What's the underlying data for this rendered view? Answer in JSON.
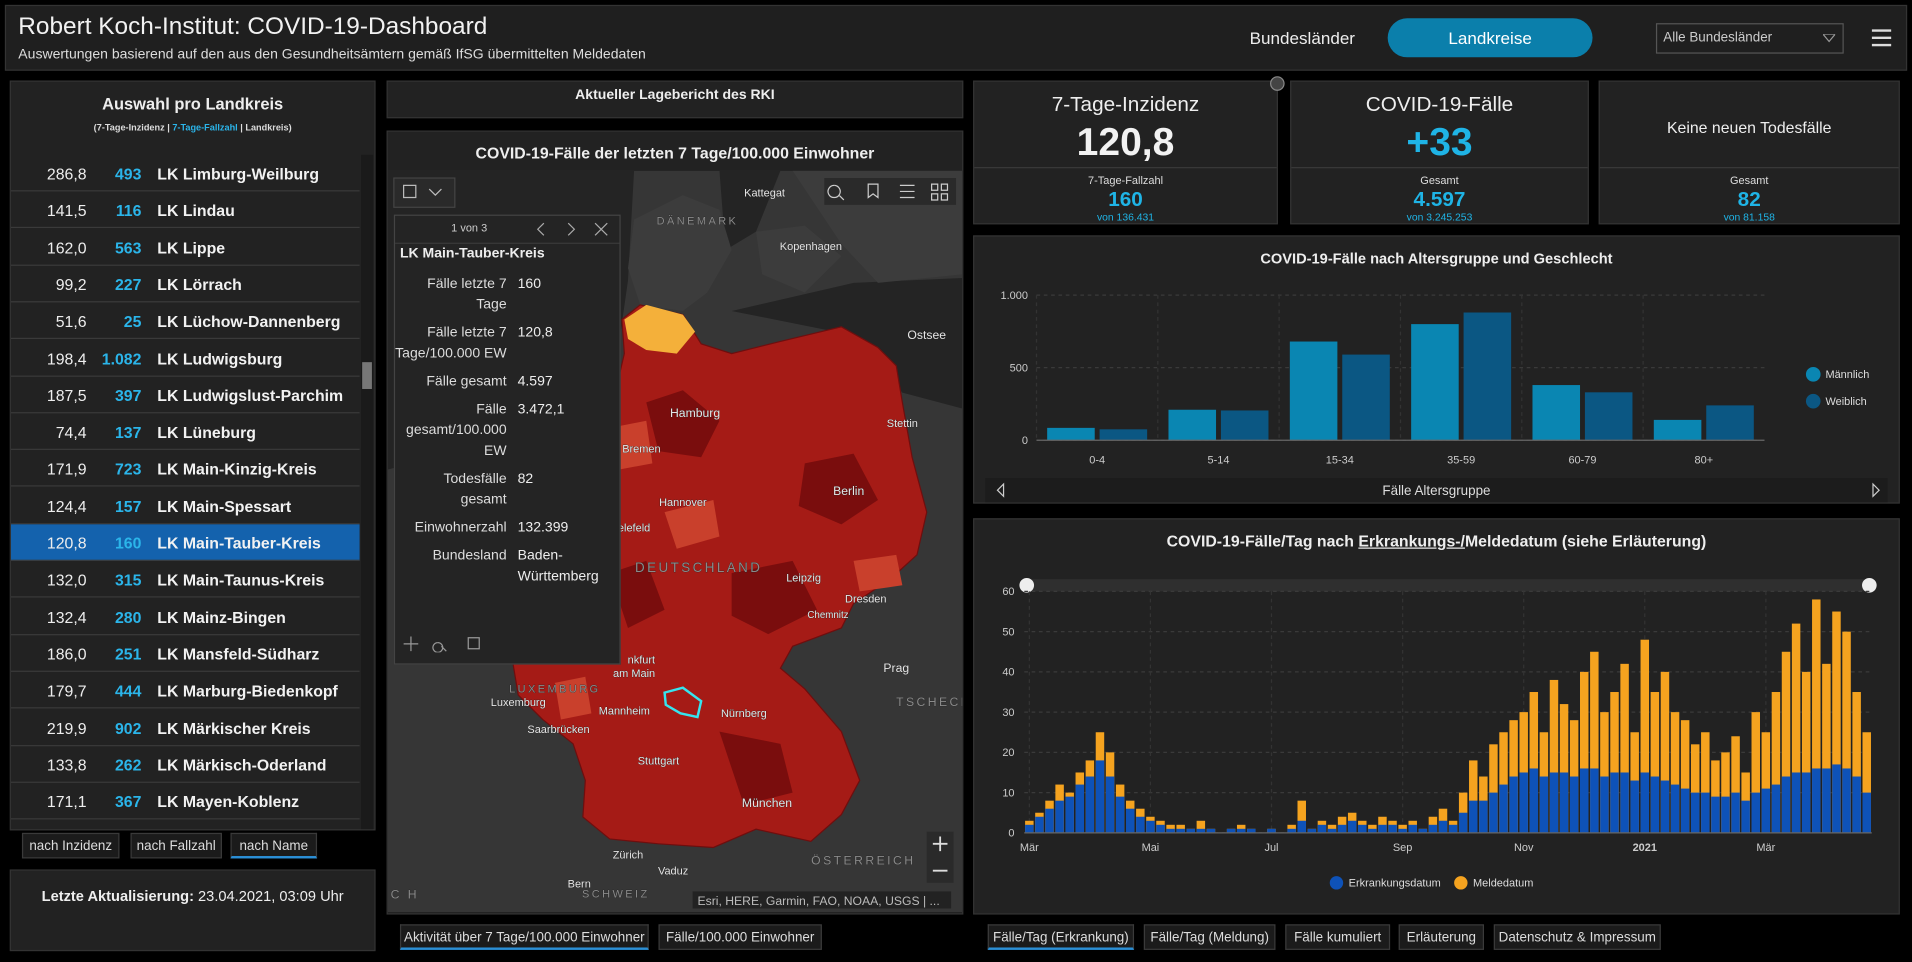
{
  "header": {
    "title": "Robert Koch-Institut: COVID-19-Dashboard",
    "subtitle": "Auswertungen basierend auf den aus den Gesundheitsämtern gemäß IfSG übermittelten Meldedaten",
    "nav": [
      "Bundesländer",
      "Landkreise"
    ],
    "dropdown": "Alle Bundesländer"
  },
  "district_list": {
    "title": "Auswahl pro Landkreis",
    "legend": [
      "(7-Tage-Inzidenz |",
      "7-Tage-Fallzahl",
      "| Landkreis)"
    ],
    "selected_row": 10,
    "rows": [
      [
        "286,8",
        "493",
        "LK Limburg-Weilburg"
      ],
      [
        "141,5",
        "116",
        "LK Lindau"
      ],
      [
        "162,0",
        "563",
        "LK Lippe"
      ],
      [
        "99,2",
        "227",
        "LK Lörrach"
      ],
      [
        "51,6",
        "25",
        "LK Lüchow-Dannenberg"
      ],
      [
        "198,4",
        "1.082",
        "LK Ludwigsburg"
      ],
      [
        "187,5",
        "397",
        "LK Ludwigslust-Parchim"
      ],
      [
        "74,4",
        "137",
        "LK Lüneburg"
      ],
      [
        "171,9",
        "723",
        "LK Main-Kinzig-Kreis"
      ],
      [
        "124,4",
        "157",
        "LK Main-Spessart"
      ],
      [
        "120,8",
        "160",
        "LK Main-Tauber-Kreis"
      ],
      [
        "132,0",
        "315",
        "LK Main-Taunus-Kreis"
      ],
      [
        "132,4",
        "280",
        "LK Mainz-Bingen"
      ],
      [
        "186,0",
        "251",
        "LK Mansfeld-Südharz"
      ],
      [
        "179,7",
        "444",
        "LK Marburg-Biedenkopf"
      ],
      [
        "219,9",
        "902",
        "LK Märkischer Kreis"
      ],
      [
        "133,8",
        "262",
        "LK Märkisch-Oderland"
      ],
      [
        "171,1",
        "367",
        "LK Mayen-Koblenz"
      ]
    ],
    "sort_tabs": [
      "nach Inzidenz",
      "nach Fallzahl",
      "nach Name"
    ]
  },
  "last_update": {
    "label": "Letzte Aktualisierung:",
    "value": "23.04.2021, 03:09 Uhr"
  },
  "report_link": "Aktueller Lagebericht des RKI",
  "map": {
    "title": "COVID-19-Fälle der letzten 7 Tage/100.000 Einwohner",
    "labels": [
      "Kattegat",
      "DÄNEMARK",
      "Kopenhagen",
      "Ostsee",
      "Hamburg",
      "Stettin",
      "Bremen",
      "Hannover",
      "Berlin",
      "elefeld",
      "DEUTSCHLAND",
      "Leipzig",
      "Dresden",
      "Chemnitz",
      "nkfurt",
      "am Main",
      "Prag",
      "LUXEMBURG",
      "Luxemburg",
      "Mannheim",
      "Nürnberg",
      "Saarbrücken",
      "TSCHECH",
      "Stuttgart",
      "München",
      "ÖSTERREICH",
      "Zürich",
      "Vaduz",
      "Bern",
      "SCHWEIZ",
      "C H"
    ],
    "popup": {
      "counter": "1 von 3",
      "title": "LK Main-Tauber-Kreis",
      "fields": [
        [
          "Fälle letzte 7 Tage",
          "160"
        ],
        [
          "Fälle letzte 7 Tage/100.000 EW",
          "120,8"
        ],
        [
          "Fälle gesamt",
          "4.597"
        ],
        [
          "Fälle gesamt/100.000 EW",
          "3.472,1"
        ],
        [
          "Todesfälle gesamt",
          "82"
        ],
        [
          "Einwohnerzahl",
          "132.399"
        ],
        [
          "Bundesland",
          "Baden-Württemberg"
        ]
      ]
    },
    "attribution": "Esri, HERE, Garmin, FAO, NOAA, USGS | ...",
    "tabs": [
      "Aktivität über 7 Tage/100.000 Einwohner",
      "Fälle/100.000 Einwohner"
    ]
  },
  "kpis": [
    {
      "title": "7-Tage-Inzidenz",
      "value": "120,8",
      "sub_label": "7-Tage-Fallzahl",
      "sub_value": "160",
      "sub_note": "von 136.431"
    },
    {
      "title": "COVID-19-Fälle",
      "value": "+33",
      "sub_label": "Gesamt",
      "sub_value": "4.597",
      "sub_note": "von 3.245.253"
    },
    {
      "title": "Keine neuen Todesfälle",
      "sub_label": "Gesamt",
      "sub_value": "82",
      "sub_note": "von 81.158"
    }
  ],
  "age_chart": {
    "type": "bar",
    "title": "COVID-19-Fälle nach Altersgruppe und Geschlecht",
    "x_label": "Fälle Altersgruppe",
    "categories": [
      "0-4",
      "5-14",
      "15-34",
      "35-59",
      "60-79",
      "80+"
    ],
    "series": [
      {
        "name": "Männlich",
        "color": "#0a86b2",
        "values": [
          85,
          210,
          680,
          800,
          380,
          140
        ]
      },
      {
        "name": "Weiblich",
        "color": "#0b5783",
        "values": [
          75,
          205,
          590,
          880,
          330,
          240
        ]
      }
    ],
    "ylim": [
      0,
      1000
    ],
    "yticks": [
      0,
      500,
      {
        "value": 1000,
        "label": "1.000"
      }
    ],
    "grid": true
  },
  "daily_chart": {
    "type": "bar",
    "title": [
      "COVID-19-Fälle/Tag nach ",
      "Erkrankungs-/",
      "Meldedatum (siehe Erläuterung)"
    ],
    "categories": [
      "Mär",
      null,
      null,
      null,
      null,
      null,
      null,
      null,
      null,
      null,
      null,
      null,
      "Mai",
      null,
      null,
      null,
      null,
      null,
      null,
      null,
      null,
      null,
      null,
      null,
      "Jul",
      null,
      null,
      null,
      null,
      null,
      null,
      null,
      null,
      null,
      null,
      null,
      null,
      "Sep",
      null,
      null,
      null,
      null,
      null,
      null,
      null,
      null,
      null,
      null,
      null,
      "Nov",
      null,
      null,
      null,
      null,
      null,
      null,
      null,
      null,
      null,
      null,
      null,
      "2021",
      null,
      null,
      null,
      null,
      null,
      null,
      null,
      null,
      null,
      null,
      null,
      "Mär",
      null,
      null,
      null,
      null,
      null,
      null,
      null,
      null,
      null,
      null
    ],
    "series": [
      {
        "name": "Erkrankungsdatum",
        "color": "#0e52b8",
        "values": [
          2,
          4,
          6,
          8,
          9,
          12,
          14,
          18,
          14,
          9,
          6,
          4,
          3,
          2,
          1,
          1,
          1,
          1,
          1,
          0,
          1,
          1,
          1,
          0,
          1,
          0,
          1,
          3,
          1,
          2,
          1,
          2,
          3,
          2,
          1,
          2,
          2,
          1,
          2,
          1,
          2,
          3,
          2,
          5,
          8,
          8,
          10,
          12,
          14,
          15,
          16,
          14,
          15,
          15,
          14,
          16,
          16,
          14,
          15,
          15,
          13,
          15,
          14,
          13,
          12,
          11,
          10,
          10,
          9,
          9,
          10,
          8,
          10,
          11,
          12,
          14,
          15,
          15,
          16,
          16,
          17,
          16,
          14,
          10
        ]
      },
      {
        "name": "Meldedatum",
        "color": "#f5a31f",
        "values": [
          3,
          5,
          8,
          12,
          10,
          15,
          18,
          25,
          20,
          12,
          8,
          6,
          4,
          3,
          2,
          2,
          1,
          3,
          1,
          0,
          1,
          2,
          1,
          0,
          1,
          0,
          2,
          8,
          1,
          3,
          2,
          4,
          5,
          3,
          2,
          4,
          3,
          2,
          3,
          1,
          4,
          6,
          3,
          10,
          18,
          14,
          22,
          25,
          28,
          30,
          35,
          25,
          38,
          32,
          28,
          40,
          45,
          30,
          35,
          42,
          25,
          48,
          35,
          40,
          30,
          28,
          22,
          25,
          18,
          20,
          24,
          15,
          30,
          25,
          35,
          45,
          52,
          40,
          58,
          42,
          55,
          50,
          35,
          25
        ]
      }
    ],
    "ylim": [
      0,
      60
    ],
    "yticks": [
      0,
      10,
      20,
      30,
      40,
      50,
      60
    ],
    "grid": true
  },
  "right_tabs": [
    "Fälle/Tag (Erkrankung)",
    "Fälle/Tag (Meldung)",
    "Fälle kumuliert",
    "Erläuterung",
    "Datenschutz & Impressum"
  ]
}
